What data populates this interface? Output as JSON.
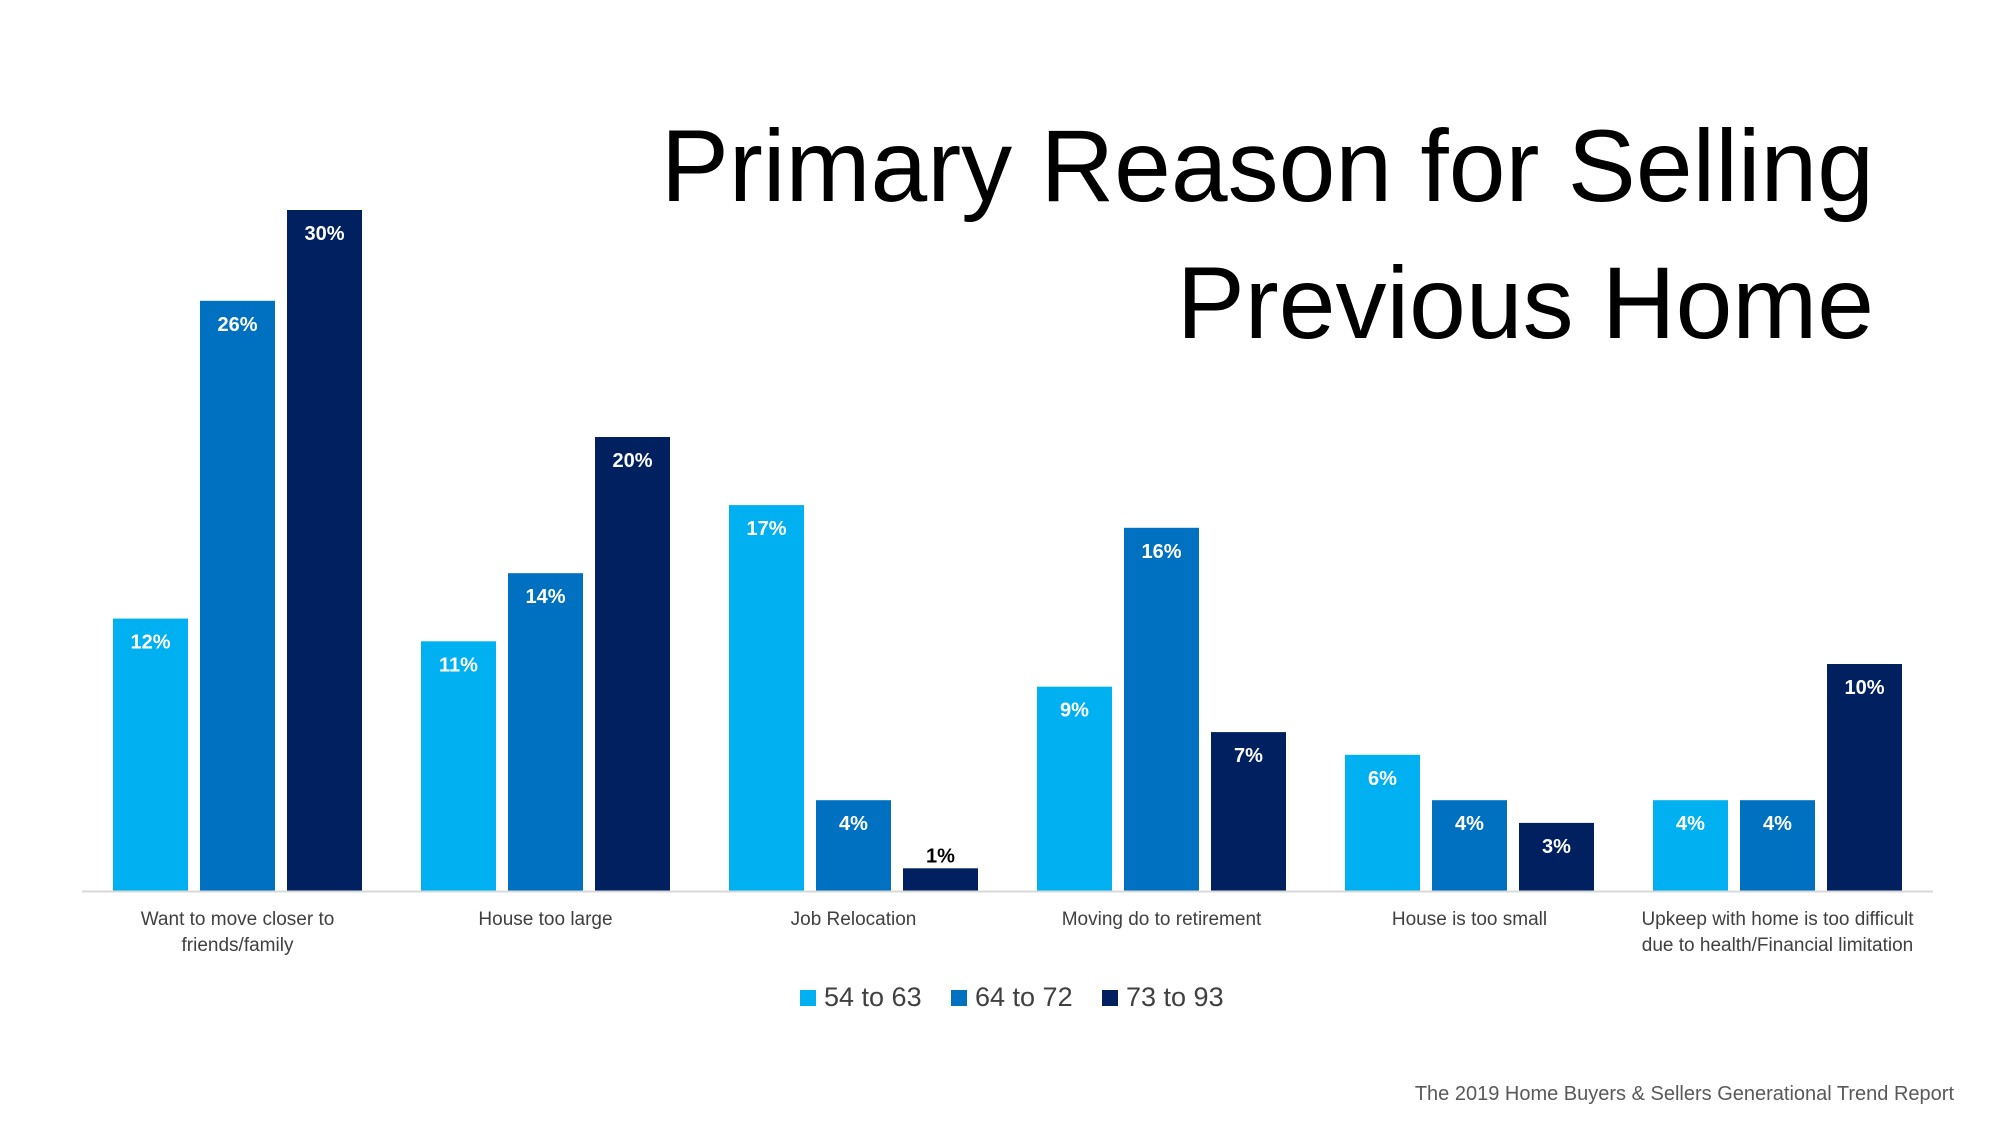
{
  "title_lines": [
    "Primary Reason for Selling",
    "Previous Home"
  ],
  "source": "The 2019 Home Buyers & Sellers Generational Trend Report",
  "colors": {
    "series_1": "#00B0F0",
    "series_2": "#0070C0",
    "series_3": "#002060",
    "axis": "#D9D9D9",
    "category_text": "#404040",
    "legend_text": "#404040",
    "value_label_light": "#FFFFFF",
    "value_label_dark": "#000000"
  },
  "chart_data": {
    "type": "bar",
    "title": "Primary Reason for Selling Previous Home",
    "categories": [
      [
        "Want to move closer to",
        "friends/family"
      ],
      [
        "House too large"
      ],
      [
        "Job Relocation"
      ],
      [
        "Moving do to retirement"
      ],
      [
        "House is too small"
      ],
      [
        "Upkeep with home is too difficult",
        "due to health/Financial limitation"
      ]
    ],
    "series": [
      {
        "name": "54 to 63",
        "values": [
          12,
          11,
          17,
          9,
          6,
          4
        ],
        "labels": [
          "12%",
          "11%",
          "17%",
          "9%",
          "6%",
          "4%"
        ]
      },
      {
        "name": "64 to 72",
        "values": [
          26,
          14,
          4,
          16,
          4,
          4
        ],
        "labels": [
          "26%",
          "14%",
          "4%",
          "16%",
          "4%",
          "4%"
        ]
      },
      {
        "name": "73 to 93",
        "values": [
          30,
          20,
          1,
          7,
          3,
          10
        ],
        "labels": [
          "30%",
          "20%",
          "1%",
          "7%",
          "3%",
          "10%"
        ]
      }
    ],
    "ylim": [
      0,
      30
    ],
    "xlabel": "",
    "ylabel": "",
    "grid": false,
    "legend_position": "bottom-center",
    "data_labels": "inside-end"
  }
}
